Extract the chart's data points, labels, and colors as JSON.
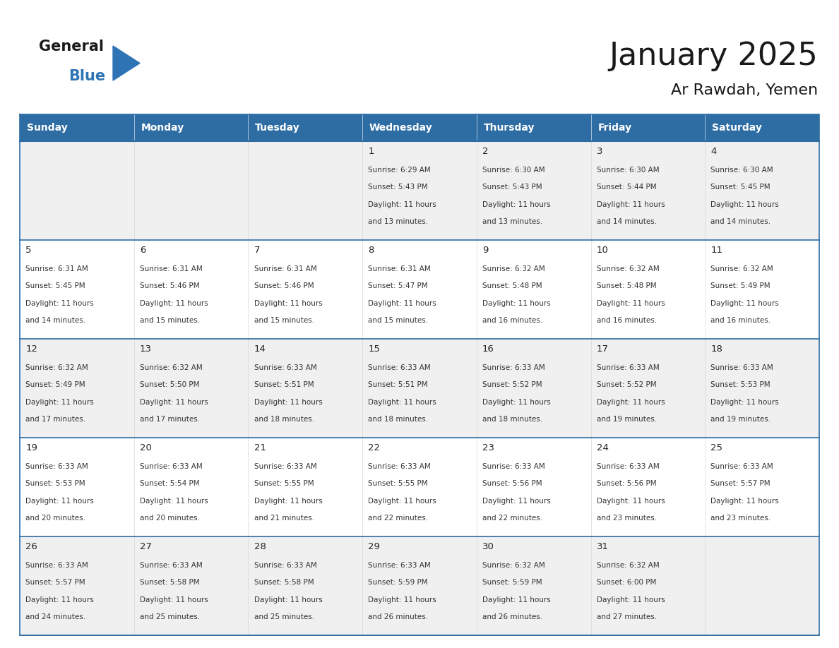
{
  "title": "January 2025",
  "subtitle": "Ar Rawdah, Yemen",
  "header_bg": "#2E6DA4",
  "header_text_color": "#FFFFFF",
  "weekdays": [
    "Sunday",
    "Monday",
    "Tuesday",
    "Wednesday",
    "Thursday",
    "Friday",
    "Saturday"
  ],
  "cell_bg_odd": "#F0F0F0",
  "cell_bg_even": "#FFFFFF",
  "cell_border_color": "#2E6DA4",
  "day_number_color": "#222222",
  "cell_text_color": "#333333",
  "logo_general_color": "#1A1A1A",
  "logo_blue_color": "#2E74B5",
  "calendar": [
    [
      {
        "day": "",
        "sunrise": "",
        "sunset": "",
        "daylight": ""
      },
      {
        "day": "",
        "sunrise": "",
        "sunset": "",
        "daylight": ""
      },
      {
        "day": "",
        "sunrise": "",
        "sunset": "",
        "daylight": ""
      },
      {
        "day": "1",
        "sunrise": "6:29 AM",
        "sunset": "5:43 PM",
        "daylight": "11 hours and 13 minutes."
      },
      {
        "day": "2",
        "sunrise": "6:30 AM",
        "sunset": "5:43 PM",
        "daylight": "11 hours and 13 minutes."
      },
      {
        "day": "3",
        "sunrise": "6:30 AM",
        "sunset": "5:44 PM",
        "daylight": "11 hours and 14 minutes."
      },
      {
        "day": "4",
        "sunrise": "6:30 AM",
        "sunset": "5:45 PM",
        "daylight": "11 hours and 14 minutes."
      }
    ],
    [
      {
        "day": "5",
        "sunrise": "6:31 AM",
        "sunset": "5:45 PM",
        "daylight": "11 hours and 14 minutes."
      },
      {
        "day": "6",
        "sunrise": "6:31 AM",
        "sunset": "5:46 PM",
        "daylight": "11 hours and 15 minutes."
      },
      {
        "day": "7",
        "sunrise": "6:31 AM",
        "sunset": "5:46 PM",
        "daylight": "11 hours and 15 minutes."
      },
      {
        "day": "8",
        "sunrise": "6:31 AM",
        "sunset": "5:47 PM",
        "daylight": "11 hours and 15 minutes."
      },
      {
        "day": "9",
        "sunrise": "6:32 AM",
        "sunset": "5:48 PM",
        "daylight": "11 hours and 16 minutes."
      },
      {
        "day": "10",
        "sunrise": "6:32 AM",
        "sunset": "5:48 PM",
        "daylight": "11 hours and 16 minutes."
      },
      {
        "day": "11",
        "sunrise": "6:32 AM",
        "sunset": "5:49 PM",
        "daylight": "11 hours and 16 minutes."
      }
    ],
    [
      {
        "day": "12",
        "sunrise": "6:32 AM",
        "sunset": "5:49 PM",
        "daylight": "11 hours and 17 minutes."
      },
      {
        "day": "13",
        "sunrise": "6:32 AM",
        "sunset": "5:50 PM",
        "daylight": "11 hours and 17 minutes."
      },
      {
        "day": "14",
        "sunrise": "6:33 AM",
        "sunset": "5:51 PM",
        "daylight": "11 hours and 18 minutes."
      },
      {
        "day": "15",
        "sunrise": "6:33 AM",
        "sunset": "5:51 PM",
        "daylight": "11 hours and 18 minutes."
      },
      {
        "day": "16",
        "sunrise": "6:33 AM",
        "sunset": "5:52 PM",
        "daylight": "11 hours and 18 minutes."
      },
      {
        "day": "17",
        "sunrise": "6:33 AM",
        "sunset": "5:52 PM",
        "daylight": "11 hours and 19 minutes."
      },
      {
        "day": "18",
        "sunrise": "6:33 AM",
        "sunset": "5:53 PM",
        "daylight": "11 hours and 19 minutes."
      }
    ],
    [
      {
        "day": "19",
        "sunrise": "6:33 AM",
        "sunset": "5:53 PM",
        "daylight": "11 hours and 20 minutes."
      },
      {
        "day": "20",
        "sunrise": "6:33 AM",
        "sunset": "5:54 PM",
        "daylight": "11 hours and 20 minutes."
      },
      {
        "day": "21",
        "sunrise": "6:33 AM",
        "sunset": "5:55 PM",
        "daylight": "11 hours and 21 minutes."
      },
      {
        "day": "22",
        "sunrise": "6:33 AM",
        "sunset": "5:55 PM",
        "daylight": "11 hours and 22 minutes."
      },
      {
        "day": "23",
        "sunrise": "6:33 AM",
        "sunset": "5:56 PM",
        "daylight": "11 hours and 22 minutes."
      },
      {
        "day": "24",
        "sunrise": "6:33 AM",
        "sunset": "5:56 PM",
        "daylight": "11 hours and 23 minutes."
      },
      {
        "day": "25",
        "sunrise": "6:33 AM",
        "sunset": "5:57 PM",
        "daylight": "11 hours and 23 minutes."
      }
    ],
    [
      {
        "day": "26",
        "sunrise": "6:33 AM",
        "sunset": "5:57 PM",
        "daylight": "11 hours and 24 minutes."
      },
      {
        "day": "27",
        "sunrise": "6:33 AM",
        "sunset": "5:58 PM",
        "daylight": "11 hours and 25 minutes."
      },
      {
        "day": "28",
        "sunrise": "6:33 AM",
        "sunset": "5:58 PM",
        "daylight": "11 hours and 25 minutes."
      },
      {
        "day": "29",
        "sunrise": "6:33 AM",
        "sunset": "5:59 PM",
        "daylight": "11 hours and 26 minutes."
      },
      {
        "day": "30",
        "sunrise": "6:32 AM",
        "sunset": "5:59 PM",
        "daylight": "11 hours and 26 minutes."
      },
      {
        "day": "31",
        "sunrise": "6:32 AM",
        "sunset": "6:00 PM",
        "daylight": "11 hours and 27 minutes."
      },
      {
        "day": "",
        "sunrise": "",
        "sunset": "",
        "daylight": ""
      }
    ]
  ],
  "fig_width": 11.88,
  "fig_height": 9.18,
  "dpi": 100
}
